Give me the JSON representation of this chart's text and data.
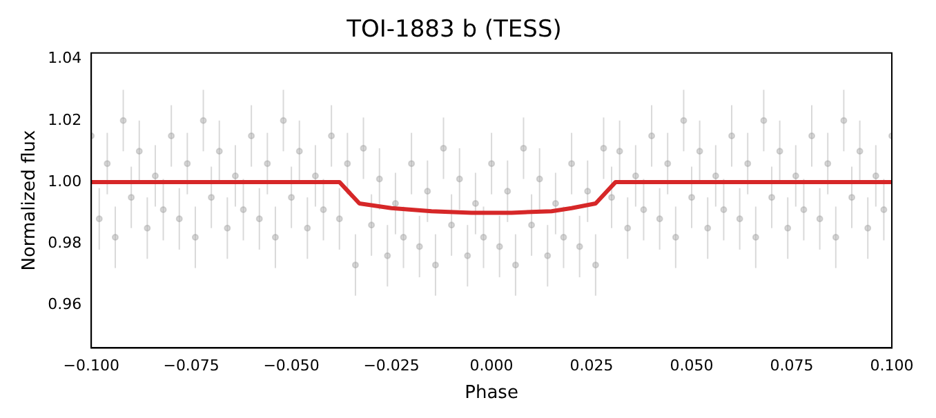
{
  "chart_data": {
    "type": "scatter",
    "title": "TOI-1883 b (TESS)",
    "xlabel": "Phase",
    "ylabel": "Normalized flux",
    "xlim": [
      -0.1,
      0.1
    ],
    "ylim": [
      0.946,
      1.042
    ],
    "xticks": [
      {
        "value": -0.1,
        "label": "−0.100"
      },
      {
        "value": -0.075,
        "label": "−0.075"
      },
      {
        "value": -0.05,
        "label": "−0.050"
      },
      {
        "value": -0.025,
        "label": "−0.025"
      },
      {
        "value": 0,
        "label": "0.000"
      },
      {
        "value": 0.025,
        "label": "0.025"
      },
      {
        "value": 0.05,
        "label": "0.050"
      },
      {
        "value": 0.075,
        "label": "0.075"
      },
      {
        "value": 0.1,
        "label": "0.100"
      }
    ],
    "yticks": [
      0.96,
      0.98,
      {
        "value": 1.0,
        "label": "1.00"
      },
      1.02,
      1.04
    ],
    "grid": false,
    "legend": false,
    "series": [
      {
        "color": "#a0a0a0",
        "marker": "circle",
        "errors": [
          0.01,
          0.01,
          0.01,
          0.01,
          0.01,
          0.01,
          0.01,
          0.01,
          0.01,
          0.01,
          0.01,
          0.01,
          0.01,
          0.01,
          0.01,
          0.01,
          0.01,
          0.01,
          0.01,
          0.01,
          0.01,
          0.01,
          0.01,
          0.01,
          0.01,
          0.01,
          0.01,
          0.01,
          0.01,
          0.01,
          0.01,
          0.01,
          0.01,
          0.01,
          0.01,
          0.01,
          0.01,
          0.01,
          0.01,
          0.01,
          0.01,
          0.01,
          0.01,
          0.01,
          0.01,
          0.01,
          0.01,
          0.01,
          0.01,
          0.01,
          0.01,
          0.01,
          0.01,
          0.01,
          0.01,
          0.01,
          0.01,
          0.01,
          0.01,
          0.01,
          0.01,
          0.01,
          0.01,
          0.01,
          0.01,
          0.01,
          0.01,
          0.01,
          0.01,
          0.01,
          0.01,
          0.01,
          0.01,
          0.01,
          0.01,
          0.01,
          0.01,
          0.01,
          0.01,
          0.01,
          0.01,
          0.01,
          0.01,
          0.01,
          0.01,
          0.01,
          0.01,
          0.01,
          0.01,
          0.01,
          0.01,
          0.01,
          0.01,
          0.01,
          0.01,
          0.01,
          0.01,
          0.01,
          0.01,
          0.01,
          0.01
        ],
        "x": [
          -0.1,
          -0.098,
          -0.096,
          -0.094,
          -0.092,
          -0.09,
          -0.088,
          -0.086,
          -0.084,
          -0.082,
          -0.08,
          -0.078,
          -0.076,
          -0.074,
          -0.072,
          -0.07,
          -0.068,
          -0.066,
          -0.064,
          -0.062,
          -0.06,
          -0.058,
          -0.056,
          -0.054,
          -0.052,
          -0.05,
          -0.048,
          -0.046,
          -0.044,
          -0.042,
          -0.04,
          -0.038,
          -0.036,
          -0.034,
          -0.032,
          -0.03,
          -0.028,
          -0.026,
          -0.024,
          -0.022,
          -0.02,
          -0.018,
          -0.016,
          -0.014,
          -0.012,
          -0.01,
          -0.008,
          -0.006,
          -0.004,
          -0.002,
          0,
          0.002,
          0.004,
          0.006,
          0.008,
          0.01,
          0.012,
          0.014,
          0.016,
          0.018,
          0.02,
          0.022,
          0.024,
          0.026,
          0.028,
          0.03,
          0.032,
          0.034,
          0.036,
          0.038,
          0.04,
          0.042,
          0.044,
          0.046,
          0.048,
          0.05,
          0.052,
          0.054,
          0.056,
          0.058,
          0.06,
          0.062,
          0.064,
          0.066,
          0.068,
          0.07,
          0.072,
          0.074,
          0.076,
          0.078,
          0.08,
          0.082,
          0.084,
          0.086,
          0.088,
          0.09,
          0.092,
          0.094,
          0.096,
          0.098,
          0.1
        ],
        "values": [
          1.015,
          0.988,
          1.006,
          0.982,
          1.02,
          0.995,
          1.01,
          0.985,
          1.002,
          0.991,
          1.015,
          0.988,
          1.006,
          0.982,
          1.02,
          0.995,
          1.01,
          0.985,
          1.002,
          0.991,
          1.015,
          0.988,
          1.006,
          0.982,
          1.02,
          0.995,
          1.01,
          0.985,
          1.002,
          0.991,
          1.015,
          0.988,
          1.006,
          0.973,
          1.011,
          0.986,
          1.001,
          0.976,
          0.993,
          0.982,
          1.006,
          0.979,
          0.997,
          0.973,
          1.011,
          0.986,
          1.001,
          0.976,
          0.993,
          0.982,
          1.006,
          0.979,
          0.997,
          0.973,
          1.011,
          0.986,
          1.001,
          0.976,
          0.993,
          0.982,
          1.006,
          0.979,
          0.997,
          0.973,
          1.011,
          0.995,
          1.01,
          0.985,
          1.002,
          0.991,
          1.015,
          0.988,
          1.006,
          0.982,
          1.02,
          0.995,
          1.01,
          0.985,
          1.002,
          0.991,
          1.015,
          0.988,
          1.006,
          0.982,
          1.02,
          0.995,
          1.01,
          0.985,
          1.002,
          0.991,
          1.015,
          0.988,
          1.006,
          0.982,
          1.02,
          0.995,
          1.01,
          0.985,
          1.002,
          0.991,
          1.015
        ]
      },
      {
        "type": "line",
        "color": "#d62728",
        "marker": "none",
        "line_style": "solid",
        "x": [
          -0.1,
          -0.038,
          -0.033,
          -0.025,
          -0.015,
          -0.005,
          0.005,
          0.015,
          0.02,
          0.026,
          0.031,
          0.1
        ],
        "values": [
          1.0,
          1.0,
          0.993,
          0.9915,
          0.9905,
          0.99,
          0.99,
          0.9905,
          0.9915,
          0.993,
          1.0,
          1.0
        ]
      }
    ]
  }
}
